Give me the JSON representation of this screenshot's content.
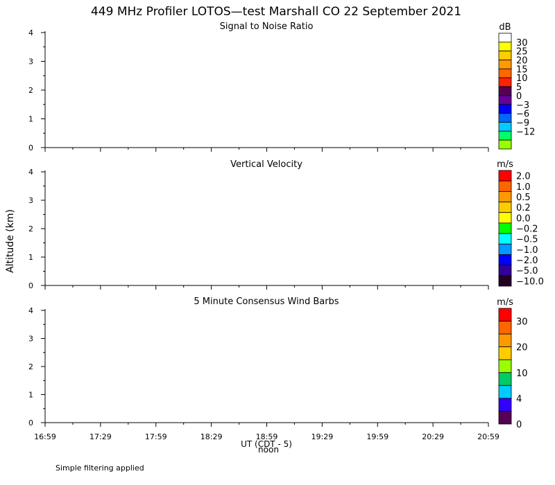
{
  "title": "449 MHz Profiler LOTOS—test Marshall CO 22 September 2021",
  "ylabel": "Altitude (km)",
  "xlabel": "UT  (CDT - 5)",
  "noon_label": "noon",
  "footer": "Simple filtering applied",
  "chart_data": [
    {
      "type": "heatmap",
      "title": "Signal to Noise Ratio",
      "unit": "dB",
      "ylim": [
        0,
        4
      ],
      "yticks": [
        0,
        1,
        2,
        3,
        4
      ],
      "xticks": [
        "16:59",
        "17:29",
        "17:59",
        "18:29",
        "18:59",
        "19:29",
        "19:59",
        "20:29",
        "20:59"
      ],
      "data": [],
      "colorbar": {
        "colors": [
          "#ffffff",
          "#ffff00",
          "#ffcc00",
          "#ff9900",
          "#ff6600",
          "#ff2200",
          "#550055",
          "#660099",
          "#0000ff",
          "#0066ff",
          "#00ccff",
          "#00ff66",
          "#99ff00"
        ],
        "labels": [
          "30",
          "25",
          "20",
          "15",
          "10",
          "5",
          "0",
          "−3",
          "−6",
          "−9",
          "−12"
        ]
      }
    },
    {
      "type": "heatmap",
      "title": "Vertical Velocity",
      "unit": "m/s",
      "ylim": [
        0,
        4
      ],
      "yticks": [
        0,
        1,
        2,
        3,
        4
      ],
      "xticks": [
        "16:59",
        "17:29",
        "17:59",
        "18:29",
        "18:59",
        "19:29",
        "19:59",
        "20:29",
        "20:59"
      ],
      "data": [],
      "colorbar": {
        "colors": [
          "#ff0000",
          "#ff6600",
          "#ff9900",
          "#ffcc00",
          "#ffff00",
          "#00ff00",
          "#00ffff",
          "#0099ff",
          "#0000ff",
          "#330099",
          "#220022"
        ],
        "labels": [
          "2.0",
          "1.0",
          "0.5",
          "0.2",
          "0.0",
          "−0.2",
          "−0.5",
          "−1.0",
          "−2.0",
          "−5.0",
          "−10.0"
        ]
      }
    },
    {
      "type": "barbs",
      "title": "5 Minute Consensus Wind Barbs",
      "unit": "m/s",
      "ylim": [
        0,
        4
      ],
      "yticks": [
        0,
        1,
        2,
        3,
        4
      ],
      "xticks": [
        "16:59",
        "17:29",
        "17:59",
        "18:29",
        "18:59",
        "19:29",
        "19:59",
        "20:29",
        "20:59"
      ],
      "data": [],
      "colorbar": {
        "colors": [
          "#ff0000",
          "#ff6600",
          "#ff9900",
          "#ffcc00",
          "#99ff00",
          "#00cc66",
          "#00ccff",
          "#3300ff",
          "#550055"
        ],
        "labels": [
          "30",
          "20",
          "10",
          "4",
          "0"
        ]
      }
    }
  ]
}
